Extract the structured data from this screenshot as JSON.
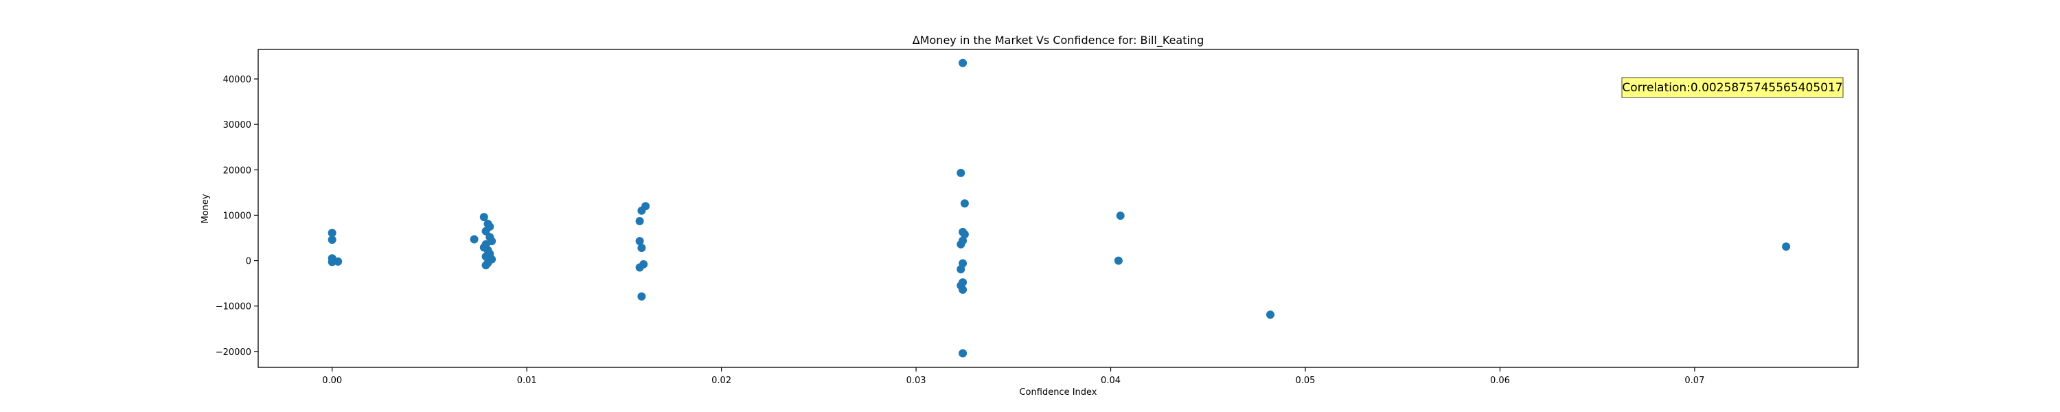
{
  "chart_data": {
    "type": "scatter",
    "title": "ΔMoney in the Market Vs Confidence for: Bill_Keating",
    "xlabel": "Confidence Index",
    "ylabel": "Money",
    "xlim": [
      -0.0038,
      0.0784
    ],
    "ylim": [
      -23500,
      46500
    ],
    "xticks": [
      0.0,
      0.01,
      0.02,
      0.03,
      0.04,
      0.05,
      0.06,
      0.07
    ],
    "xtick_labels": [
      "0.00",
      "0.01",
      "0.02",
      "0.03",
      "0.04",
      "0.05",
      "0.06",
      "0.07"
    ],
    "yticks": [
      -20000,
      -10000,
      0,
      10000,
      20000,
      30000,
      40000
    ],
    "ytick_labels": [
      "−20000",
      "−10000",
      "0",
      "10000",
      "20000",
      "30000",
      "40000"
    ],
    "grid": false,
    "annotation": "Correlation:0.0025875745565405017",
    "annotation_position": "top-right",
    "marker_color": "#1f77b4",
    "annotation_bg": "#ffff80",
    "points": [
      {
        "x": 0.0,
        "y": 6100
      },
      {
        "x": 0.0,
        "y": 4600
      },
      {
        "x": 0.0,
        "y": 500
      },
      {
        "x": 0.0,
        "y": -300
      },
      {
        "x": 0.0003,
        "y": -200
      },
      {
        "x": 0.0073,
        "y": 4700
      },
      {
        "x": 0.0078,
        "y": 9600
      },
      {
        "x": 0.008,
        "y": 8100
      },
      {
        "x": 0.0081,
        "y": 7500
      },
      {
        "x": 0.0079,
        "y": 6500
      },
      {
        "x": 0.0081,
        "y": 5200
      },
      {
        "x": 0.0082,
        "y": 4300
      },
      {
        "x": 0.0079,
        "y": 3600
      },
      {
        "x": 0.0078,
        "y": 2900
      },
      {
        "x": 0.008,
        "y": 2300
      },
      {
        "x": 0.0081,
        "y": 1500
      },
      {
        "x": 0.0079,
        "y": 900
      },
      {
        "x": 0.0082,
        "y": 300
      },
      {
        "x": 0.008,
        "y": -500
      },
      {
        "x": 0.0079,
        "y": -1000
      },
      {
        "x": 0.0161,
        "y": 12000
      },
      {
        "x": 0.0159,
        "y": 11000
      },
      {
        "x": 0.0158,
        "y": 8700
      },
      {
        "x": 0.0158,
        "y": 4300
      },
      {
        "x": 0.0159,
        "y": 2800
      },
      {
        "x": 0.016,
        "y": -800
      },
      {
        "x": 0.0158,
        "y": -1500
      },
      {
        "x": 0.0159,
        "y": -7900
      },
      {
        "x": 0.0324,
        "y": 43500
      },
      {
        "x": 0.0323,
        "y": 19300
      },
      {
        "x": 0.0325,
        "y": 12600
      },
      {
        "x": 0.0324,
        "y": 6300
      },
      {
        "x": 0.0325,
        "y": 5800
      },
      {
        "x": 0.0324,
        "y": 4400
      },
      {
        "x": 0.0323,
        "y": 3600
      },
      {
        "x": 0.0324,
        "y": -600
      },
      {
        "x": 0.0323,
        "y": -1900
      },
      {
        "x": 0.0324,
        "y": -4800
      },
      {
        "x": 0.0323,
        "y": -5500
      },
      {
        "x": 0.0324,
        "y": -6400
      },
      {
        "x": 0.0324,
        "y": -20400
      },
      {
        "x": 0.0405,
        "y": 9900
      },
      {
        "x": 0.0404,
        "y": 0
      },
      {
        "x": 0.0482,
        "y": -11900
      },
      {
        "x": 0.0747,
        "y": 3100
      }
    ]
  }
}
